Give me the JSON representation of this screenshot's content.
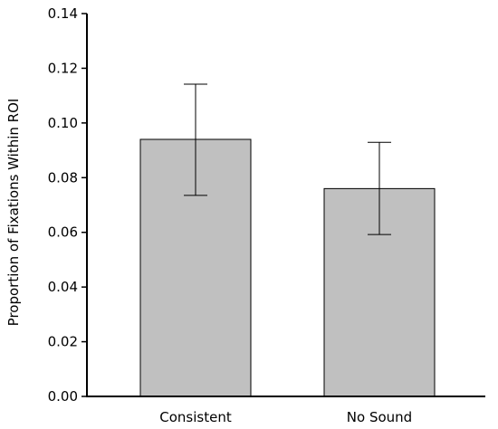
{
  "chart_data": {
    "type": "bar",
    "title": "",
    "xlabel": "",
    "ylabel": "Proportion of Fixations Within ROI",
    "categories": [
      "Consistent",
      "No Sound"
    ],
    "values": [
      0.094,
      0.076
    ],
    "error_low": [
      0.0735,
      0.0592
    ],
    "error_high": [
      0.1142,
      0.0929
    ],
    "ylim": [
      0,
      0.14
    ],
    "yticks": [
      "0.00",
      "0.02",
      "0.04",
      "0.06",
      "0.08",
      "0.10",
      "0.12",
      "0.14"
    ],
    "grid": false,
    "legend": "none",
    "bar_color": "#c0c0c0",
    "edge_color": "#000000"
  }
}
